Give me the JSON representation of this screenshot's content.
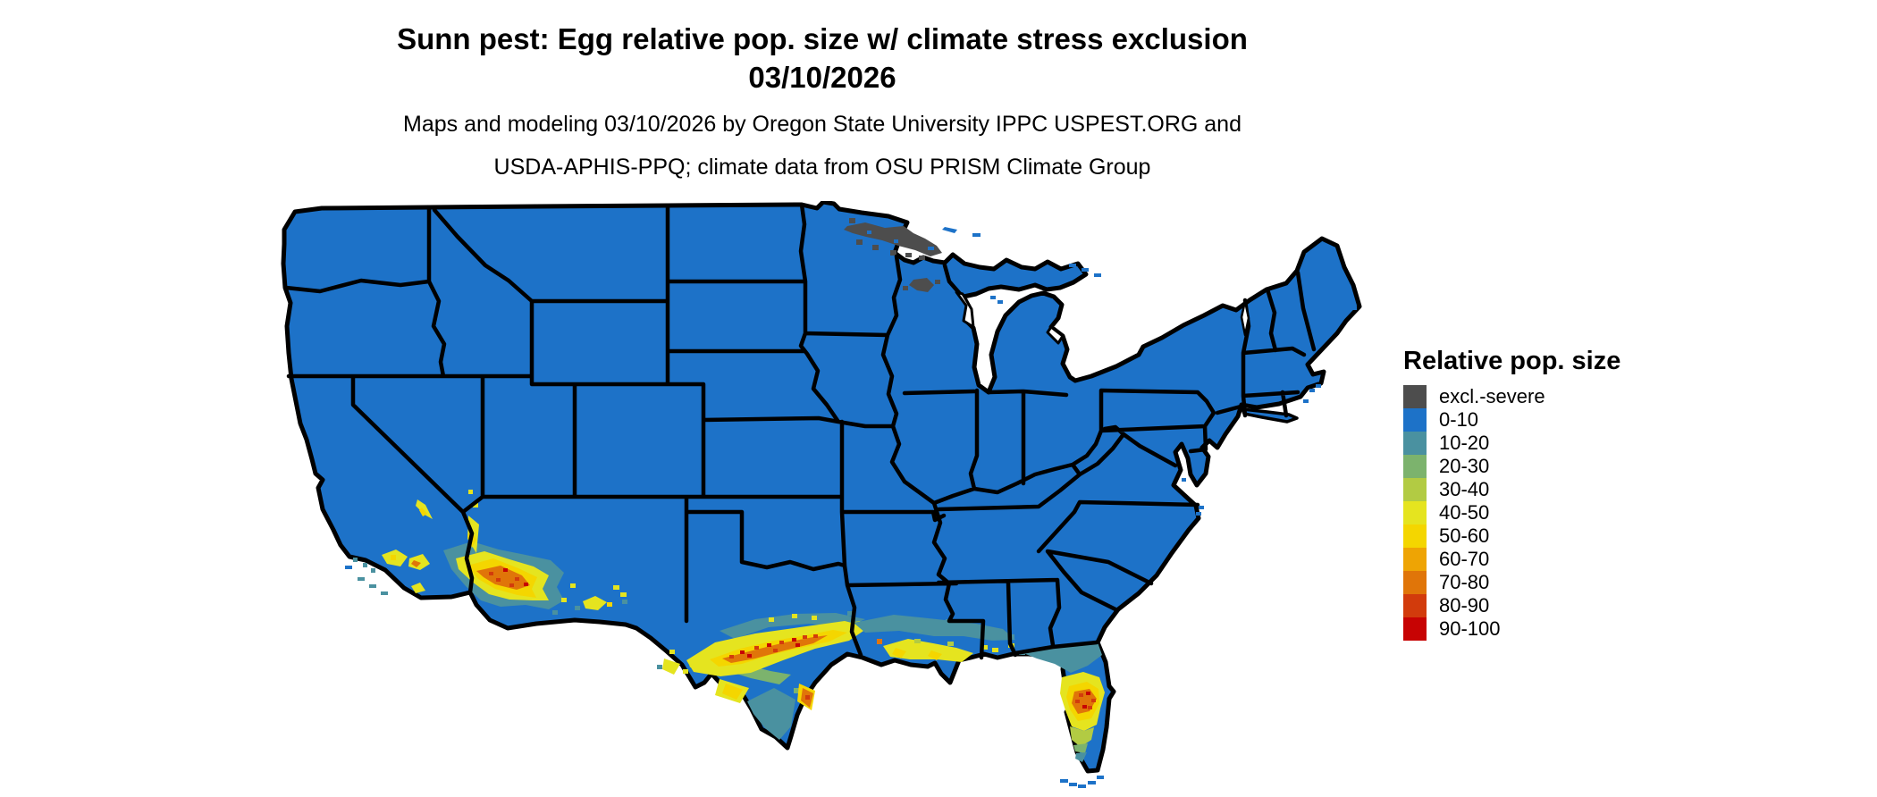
{
  "title": {
    "line1": "Sunn pest: Egg relative pop. size w/ climate stress exclusion",
    "line2": "03/10/2026"
  },
  "subtitle": {
    "line1": "Maps and modeling 03/10/2026 by Oregon State University IPPC USPEST.ORG and",
    "line2": "USDA-APHIS-PPQ; climate data from OSU PRISM Climate Group"
  },
  "legend": {
    "title": "Relative pop. size",
    "items": [
      {
        "label": "excl.-severe",
        "color": "#4d4d4d"
      },
      {
        "label": "0-10",
        "color": "#1d72c8"
      },
      {
        "label": "10-20",
        "color": "#4a91a0"
      },
      {
        "label": "20-30",
        "color": "#7cb36d"
      },
      {
        "label": "30-40",
        "color": "#b2cb43"
      },
      {
        "label": "40-50",
        "color": "#e5e41f"
      },
      {
        "label": "50-60",
        "color": "#f4d600"
      },
      {
        "label": "60-70",
        "color": "#eea404"
      },
      {
        "label": "70-80",
        "color": "#e07509"
      },
      {
        "label": "80-90",
        "color": "#d23b0c"
      },
      {
        "label": "90-100",
        "color": "#c70303"
      }
    ]
  },
  "map": {
    "background": "#ffffff",
    "border_color": "#000000",
    "base_category": "0-10",
    "base_color": "#1d72c8",
    "hotspots": [
      {
        "region": "northeastern Minnesota arrowhead",
        "category": "excl.-severe"
      },
      {
        "region": "north-central Wisconsin",
        "category": "excl.-severe"
      },
      {
        "region": "south-central Texas band (Del Rio to Houston)",
        "category": "40-100"
      },
      {
        "region": "southern Texas interior",
        "category": "10-30"
      },
      {
        "region": "southern Louisiana / Gulf coast",
        "category": "10-60"
      },
      {
        "region": "central Florida peninsula",
        "category": "40-100"
      },
      {
        "region": "southwestern Arizona (Phoenix-Tucson)",
        "category": "40-100"
      },
      {
        "region": "southern New Mexico",
        "category": "40-50"
      },
      {
        "region": "southern California coast and valleys",
        "category": "40-70"
      }
    ]
  }
}
